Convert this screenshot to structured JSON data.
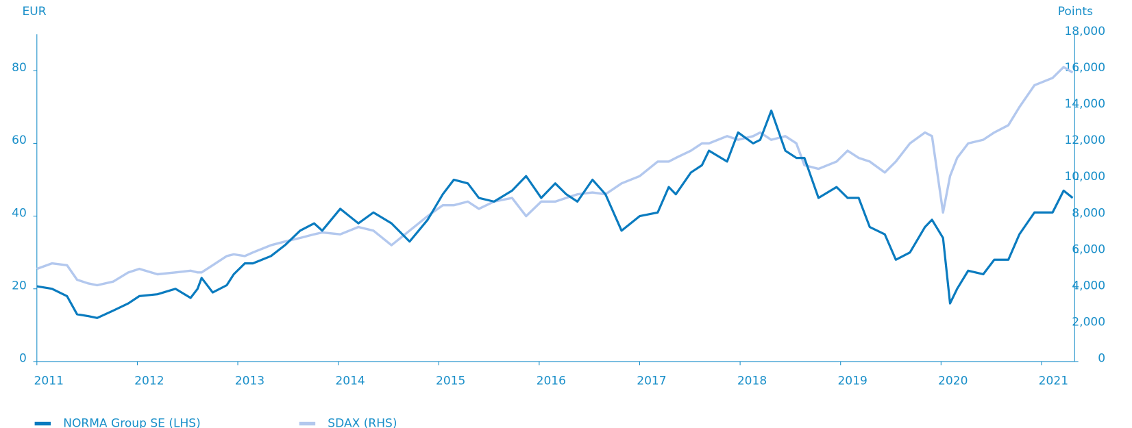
{
  "chart_data": {
    "type": "line",
    "y_label": "EUR",
    "y2_label": "Points",
    "x": [
      2011.0,
      2011.15,
      2011.3,
      2011.4,
      2011.51,
      2011.6,
      2011.76,
      2011.91,
      2012.02,
      2012.2,
      2012.38,
      2012.53,
      2012.6,
      2012.64,
      2012.75,
      2012.89,
      2012.96,
      2013.07,
      2013.15,
      2013.33,
      2013.47,
      2013.62,
      2013.76,
      2013.84,
      2014.02,
      2014.2,
      2014.35,
      2014.53,
      2014.71,
      2014.89,
      2015.04,
      2015.15,
      2015.29,
      2015.4,
      2015.55,
      2015.73,
      2015.87,
      2016.02,
      2016.16,
      2016.27,
      2016.38,
      2016.53,
      2016.66,
      2016.82,
      2017.0,
      2017.18,
      2017.29,
      2017.36,
      2017.51,
      2017.62,
      2017.69,
      2017.87,
      2017.98,
      2018.13,
      2018.2,
      2018.31,
      2018.45,
      2018.56,
      2018.64,
      2018.78,
      2018.96,
      2019.07,
      2019.18,
      2019.29,
      2019.44,
      2019.55,
      2019.69,
      2019.84,
      2019.91,
      2020.02,
      2020.09,
      2020.16,
      2020.27,
      2020.42,
      2020.53,
      2020.67,
      2020.78,
      2020.93,
      2021.11,
      2021.22,
      2021.31
    ],
    "series": [
      {
        "name": "NORMA Group SE (LHS)",
        "color": "#0a7bbf",
        "axis": "y",
        "values": [
          20.7,
          20,
          18,
          13,
          12.5,
          12,
          14,
          16,
          18,
          18.5,
          20,
          17.5,
          20,
          23,
          19,
          21,
          24,
          27,
          27,
          29,
          32,
          36,
          38,
          36,
          42,
          38,
          41,
          38,
          33,
          39,
          46,
          50,
          49,
          45,
          44,
          47,
          51,
          45,
          49,
          46,
          44,
          50,
          46,
          36,
          40,
          41,
          48,
          46,
          52,
          54,
          58,
          55,
          63,
          60,
          61,
          69,
          58,
          56,
          56,
          45,
          48,
          45,
          45,
          37,
          35,
          28,
          30,
          37,
          39,
          34,
          16,
          20,
          25,
          24,
          28,
          28,
          35,
          41,
          41,
          47,
          45
        ]
      },
      {
        "name": "SDAX (RHS)",
        "color": "#b3c8ee",
        "axis": "y2",
        "values": [
          5100,
          5400,
          5300,
          4500,
          4300,
          4200,
          4400,
          4900,
          5100,
          4800,
          4900,
          5000,
          4900,
          4900,
          5300,
          5800,
          5900,
          5800,
          6000,
          6400,
          6600,
          6800,
          7000,
          7100,
          7000,
          7400,
          7200,
          6400,
          7200,
          8000,
          8600,
          8600,
          8800,
          8400,
          8800,
          9000,
          8000,
          8800,
          8800,
          9000,
          9200,
          9300,
          9200,
          9800,
          10200,
          11000,
          11000,
          11200,
          11600,
          12000,
          12000,
          12400,
          12200,
          12400,
          12600,
          12200,
          12400,
          12000,
          10800,
          10600,
          11000,
          11600,
          11200,
          11000,
          10400,
          11000,
          12000,
          12600,
          12400,
          8200,
          10200,
          11200,
          12000,
          12200,
          12600,
          13000,
          14000,
          15200,
          15600,
          16200,
          15900
        ]
      }
    ],
    "xlim": [
      2011,
      2021.33
    ],
    "xticks": [
      2011,
      2012,
      2013,
      2014,
      2015,
      2016,
      2017,
      2018,
      2019,
      2020,
      2021
    ],
    "ylim": [
      0,
      90
    ],
    "yticks": [
      0,
      20,
      40,
      60,
      80
    ],
    "y2lim": [
      0,
      18000
    ],
    "y2ticks": [
      0,
      {
        "value": 2000,
        "label": "2,000"
      },
      {
        "value": 4000,
        "label": "4,000"
      },
      {
        "value": 6000,
        "label": "6,000"
      },
      {
        "value": 8000,
        "label": "8,000"
      },
      {
        "value": 10000,
        "label": "10,000"
      },
      {
        "value": 12000,
        "label": "12,000"
      },
      {
        "value": 14000,
        "label": "14,000"
      },
      {
        "value": 16000,
        "label": "16,000"
      },
      {
        "value": 18000,
        "label": "18,000"
      }
    ],
    "grid": false,
    "legend": "bottom-left"
  }
}
